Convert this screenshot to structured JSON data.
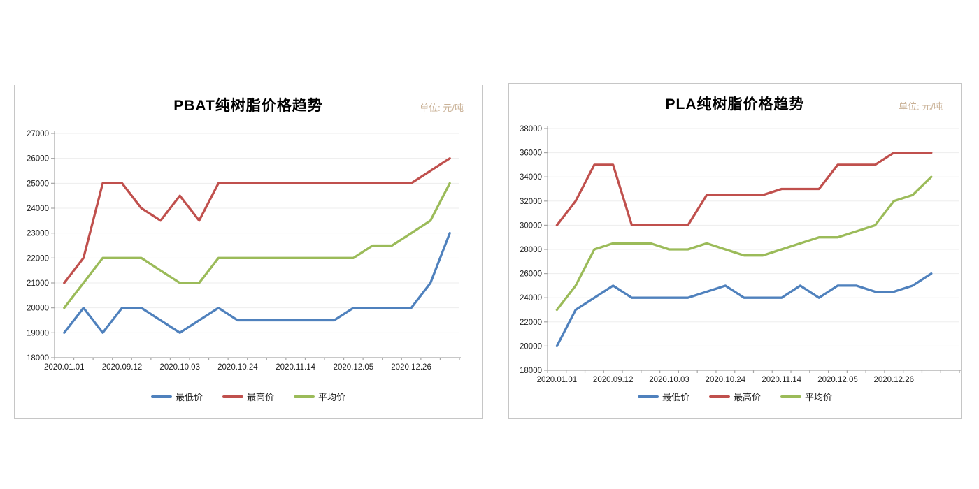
{
  "unit_label": "单位: 元/吨",
  "colors": {
    "min_price": "#4F81BD",
    "max_price": "#C0504D",
    "avg_price": "#9BBB59",
    "grid": "#EDEDED",
    "axis": "#A6A6A6",
    "axis_text": "#1F1F1F",
    "unit_text": "#C9B196",
    "panel_border": "#C6C6C6"
  },
  "chart_data": [
    {
      "type": "line",
      "title": "PBAT纯树脂价格趋势",
      "unit_label": "单位: 元/吨",
      "categories": [
        "2020.01.01",
        "",
        "",
        "2020.09.12",
        "",
        "",
        "2020.10.03",
        "",
        "",
        "2020.10.24",
        "",
        "",
        "2020.11.14",
        "",
        "",
        "2020.12.05",
        "",
        "",
        "2020.12.26",
        "",
        ""
      ],
      "ylim": [
        18000,
        27000
      ],
      "y_step": 1000,
      "grid": true,
      "legend_position": "bottom",
      "series": [
        {
          "name": "最低价",
          "color": "#4F81BD",
          "values": [
            19000,
            20000,
            19000,
            20000,
            20000,
            19500,
            19000,
            19500,
            20000,
            19500,
            19500,
            19500,
            19500,
            19500,
            19500,
            20000,
            20000,
            20000,
            20000,
            21000,
            23000
          ]
        },
        {
          "name": "最高价",
          "color": "#C0504D",
          "values": [
            21000,
            22000,
            25000,
            25000,
            24000,
            23500,
            24500,
            23500,
            25000,
            25000,
            25000,
            25000,
            25000,
            25000,
            25000,
            25000,
            25000,
            25000,
            25000,
            25500,
            26000
          ]
        },
        {
          "name": "平均价",
          "color": "#9BBB59",
          "values": [
            20000,
            21000,
            22000,
            22000,
            22000,
            21500,
            21000,
            21000,
            22000,
            22000,
            22000,
            22000,
            22000,
            22000,
            22000,
            22000,
            22500,
            22500,
            23000,
            23500,
            25000
          ]
        }
      ]
    },
    {
      "type": "line",
      "title": "PLA纯树脂价格趋势",
      "unit_label": "单位: 元/吨",
      "categories": [
        "2020.01.01",
        "",
        "",
        "2020.09.12",
        "",
        "",
        "2020.10.03",
        "",
        "",
        "2020.10.24",
        "",
        "",
        "2020.11.14",
        "",
        "",
        "2020.12.05",
        "",
        "",
        "2020.12.26",
        "",
        ""
      ],
      "ylim": [
        18000,
        38000
      ],
      "y_step": 2000,
      "grid": true,
      "legend_position": "bottom",
      "series": [
        {
          "name": "最低价",
          "color": "#4F81BD",
          "values": [
            20000,
            23000,
            24000,
            25000,
            24000,
            24000,
            24000,
            24000,
            24500,
            25000,
            24000,
            24000,
            24000,
            25000,
            24000,
            25000,
            25000,
            24500,
            24500,
            25000,
            26000
          ]
        },
        {
          "name": "最高价",
          "color": "#C0504D",
          "values": [
            30000,
            32000,
            35000,
            35000,
            30000,
            30000,
            30000,
            30000,
            32500,
            32500,
            32500,
            32500,
            33000,
            33000,
            33000,
            35000,
            35000,
            35000,
            36000,
            36000,
            36000
          ]
        },
        {
          "name": "平均价",
          "color": "#9BBB59",
          "values": [
            23000,
            25000,
            28000,
            28500,
            28500,
            28500,
            28000,
            28000,
            28500,
            28000,
            27500,
            27500,
            28000,
            28500,
            29000,
            29000,
            29500,
            30000,
            32000,
            32500,
            34000
          ]
        }
      ]
    }
  ]
}
